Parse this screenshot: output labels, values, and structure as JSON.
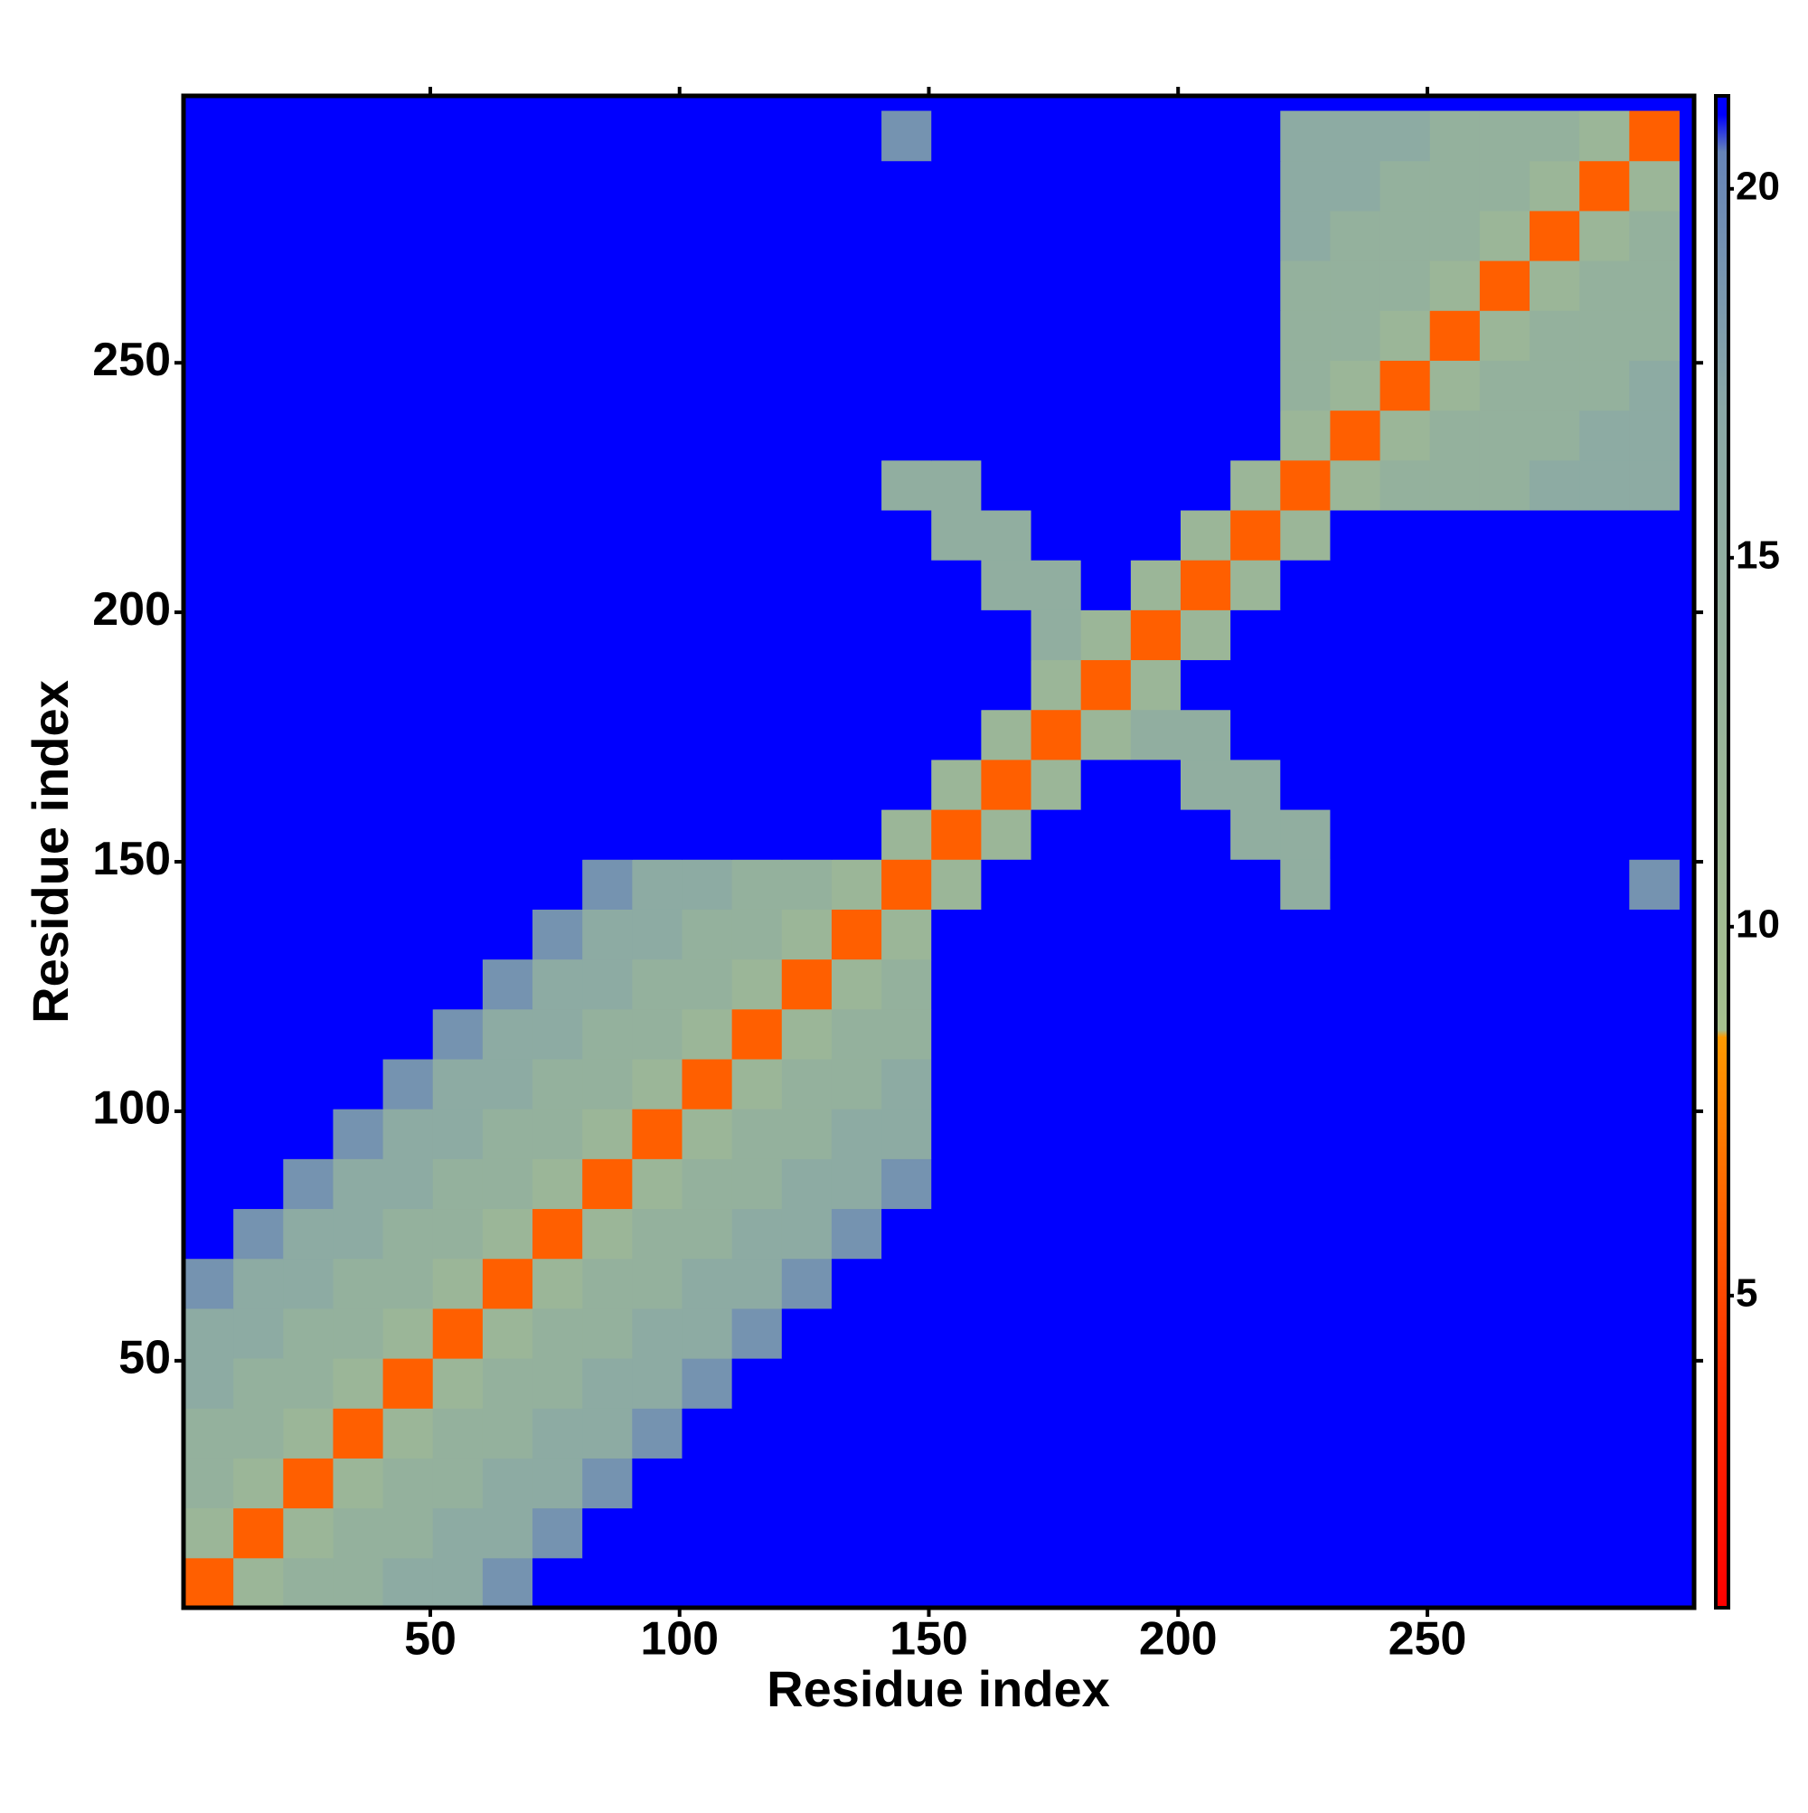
{
  "chart_data": {
    "type": "heatmap",
    "xlabel": "Residue index",
    "ylabel": "Residue index",
    "xlim": [
      0.5,
      303.5
    ],
    "ylim": [
      0.5,
      303.5
    ],
    "xticks": [
      50,
      100,
      150,
      200,
      250
    ],
    "yticks": [
      50,
      100,
      150,
      200,
      250
    ],
    "background_color": "#0000ff",
    "x_bins": [
      0.5,
      10.5,
      20.5,
      30.5,
      40.5,
      50.5,
      60.5,
      70.5,
      80.5,
      90.5,
      100.5,
      110.5,
      120.5,
      130.5,
      140.5,
      150.5,
      160.5,
      170.5,
      180.5,
      190.5,
      200.5,
      210.5,
      220.5,
      230.5,
      240.5,
      250.5,
      260.5,
      270.5,
      280.5,
      290.5,
      300.5
    ],
    "y_bins": [
      0.5,
      10.5,
      20.5,
      30.5,
      40.5,
      50.5,
      60.5,
      70.5,
      80.5,
      90.5,
      100.5,
      110.5,
      120.5,
      130.5,
      140.5,
      150.5,
      160.5,
      170.5,
      180.5,
      190.5,
      200.5,
      210.5,
      220.5,
      230.5,
      240.5,
      250.5,
      260.5,
      270.5,
      280.5,
      290.5,
      300.5
    ],
    "clim": [
      0.77,
      21.26
    ],
    "cticks": [
      5,
      10,
      15,
      20
    ],
    "colorscale": [
      {
        "value": 0.77,
        "color": "#ff0000"
      },
      {
        "value": 4,
        "color": "#ff3000"
      },
      {
        "value": 8.5,
        "color": "#ff9a00"
      },
      {
        "value": 8.6,
        "color": "#a6c08e"
      },
      {
        "value": 17,
        "color": "#8aa8a6"
      },
      {
        "value": 20.5,
        "color": "#6684b8"
      },
      {
        "value": 21,
        "color": "#0000ff"
      },
      {
        "value": 21.26,
        "color": "#0000ff"
      }
    ],
    "z": [
      [
        6,
        12,
        14,
        14,
        16,
        16,
        19,
        21,
        21,
        21,
        21,
        21,
        21,
        21,
        21,
        21,
        21,
        21,
        21,
        21,
        21,
        21,
        21,
        21,
        21,
        21,
        21,
        21,
        21,
        21
      ],
      [
        12,
        6,
        12,
        14,
        14,
        16,
        16,
        19,
        21,
        21,
        21,
        21,
        21,
        21,
        21,
        21,
        21,
        21,
        21,
        21,
        21,
        21,
        21,
        21,
        21,
        21,
        21,
        21,
        21,
        21
      ],
      [
        14,
        12,
        6,
        12,
        14,
        14,
        16,
        16,
        19,
        21,
        21,
        21,
        21,
        21,
        21,
        21,
        21,
        21,
        21,
        21,
        21,
        21,
        21,
        21,
        21,
        21,
        21,
        21,
        21,
        21
      ],
      [
        14,
        14,
        12,
        6,
        12,
        14,
        14,
        16,
        16,
        19,
        21,
        21,
        21,
        21,
        21,
        21,
        21,
        21,
        21,
        21,
        21,
        21,
        21,
        21,
        21,
        21,
        21,
        21,
        21,
        21
      ],
      [
        16,
        14,
        14,
        12,
        6,
        12,
        14,
        14,
        16,
        16,
        19,
        21,
        21,
        21,
        21,
        21,
        21,
        21,
        21,
        21,
        21,
        21,
        21,
        21,
        21,
        21,
        21,
        21,
        21,
        21
      ],
      [
        16,
        16,
        14,
        14,
        12,
        6,
        12,
        14,
        14,
        16,
        16,
        19,
        21,
        21,
        21,
        21,
        21,
        21,
        21,
        21,
        21,
        21,
        21,
        21,
        21,
        21,
        21,
        21,
        21,
        21
      ],
      [
        19,
        16,
        16,
        14,
        14,
        12,
        6,
        12,
        14,
        14,
        16,
        16,
        19,
        21,
        21,
        21,
        21,
        21,
        21,
        21,
        21,
        21,
        21,
        21,
        21,
        21,
        21,
        21,
        21,
        21
      ],
      [
        21,
        19,
        16,
        16,
        14,
        14,
        12,
        6,
        12,
        14,
        14,
        16,
        16,
        19,
        21,
        21,
        21,
        21,
        21,
        21,
        21,
        21,
        21,
        21,
        21,
        21,
        21,
        21,
        21,
        21
      ],
      [
        21,
        21,
        19,
        16,
        16,
        14,
        14,
        12,
        6,
        12,
        14,
        14,
        16,
        16,
        19,
        21,
        21,
        21,
        21,
        21,
        21,
        21,
        21,
        21,
        21,
        21,
        21,
        21,
        21,
        21
      ],
      [
        21,
        21,
        21,
        19,
        16,
        16,
        14,
        14,
        12,
        6,
        12,
        14,
        14,
        16,
        16,
        21,
        21,
        21,
        21,
        21,
        21,
        21,
        21,
        21,
        21,
        21,
        21,
        21,
        21,
        21
      ],
      [
        21,
        21,
        21,
        21,
        19,
        16,
        16,
        14,
        14,
        12,
        6,
        12,
        14,
        14,
        16,
        21,
        21,
        21,
        21,
        21,
        21,
        21,
        21,
        21,
        21,
        21,
        21,
        21,
        21,
        21
      ],
      [
        21,
        21,
        21,
        21,
        21,
        19,
        16,
        16,
        14,
        14,
        12,
        6,
        12,
        14,
        14,
        21,
        21,
        21,
        21,
        21,
        21,
        21,
        21,
        21,
        21,
        21,
        21,
        21,
        21,
        21
      ],
      [
        21,
        21,
        21,
        21,
        21,
        21,
        19,
        16,
        16,
        14,
        14,
        12,
        6,
        12,
        14,
        21,
        21,
        21,
        21,
        21,
        21,
        21,
        21,
        21,
        21,
        21,
        21,
        21,
        21,
        21
      ],
      [
        21,
        21,
        21,
        21,
        21,
        21,
        21,
        19,
        16,
        16,
        14,
        14,
        12,
        6,
        12,
        21,
        21,
        21,
        21,
        21,
        21,
        21,
        21,
        21,
        21,
        21,
        21,
        21,
        21,
        21
      ],
      [
        21,
        21,
        21,
        21,
        21,
        21,
        21,
        21,
        19,
        16,
        16,
        14,
        14,
        12,
        6,
        12,
        21,
        21,
        21,
        21,
        21,
        21,
        15,
        21,
        21,
        21,
        21,
        21,
        21,
        19
      ],
      [
        21,
        21,
        21,
        21,
        21,
        21,
        21,
        21,
        21,
        21,
        21,
        21,
        21,
        21,
        12,
        6,
        12,
        21,
        21,
        21,
        21,
        15,
        15,
        21,
        21,
        21,
        21,
        21,
        21,
        21
      ],
      [
        21,
        21,
        21,
        21,
        21,
        21,
        21,
        21,
        21,
        21,
        21,
        21,
        21,
        21,
        21,
        12,
        6,
        12,
        21,
        21,
        15,
        15,
        21,
        21,
        21,
        21,
        21,
        21,
        21,
        21
      ],
      [
        21,
        21,
        21,
        21,
        21,
        21,
        21,
        21,
        21,
        21,
        21,
        21,
        21,
        21,
        21,
        21,
        12,
        6,
        12,
        15,
        15,
        21,
        21,
        21,
        21,
        21,
        21,
        21,
        21,
        21
      ],
      [
        21,
        21,
        21,
        21,
        21,
        21,
        21,
        21,
        21,
        21,
        21,
        21,
        21,
        21,
        21,
        21,
        21,
        12,
        6,
        12,
        21,
        21,
        21,
        21,
        21,
        21,
        21,
        21,
        21,
        21
      ],
      [
        21,
        21,
        21,
        21,
        21,
        21,
        21,
        21,
        21,
        21,
        21,
        21,
        21,
        21,
        21,
        21,
        21,
        15,
        12,
        6,
        12,
        21,
        21,
        21,
        21,
        21,
        21,
        21,
        21,
        21
      ],
      [
        21,
        21,
        21,
        21,
        21,
        21,
        21,
        21,
        21,
        21,
        21,
        21,
        21,
        21,
        21,
        21,
        15,
        15,
        21,
        12,
        6,
        12,
        21,
        21,
        21,
        21,
        21,
        21,
        21,
        21
      ],
      [
        21,
        21,
        21,
        21,
        21,
        21,
        21,
        21,
        21,
        21,
        21,
        21,
        21,
        21,
        21,
        15,
        15,
        21,
        21,
        21,
        12,
        6,
        12,
        21,
        21,
        21,
        21,
        21,
        21,
        21
      ],
      [
        21,
        21,
        21,
        21,
        21,
        21,
        21,
        21,
        21,
        21,
        21,
        21,
        21,
        21,
        15,
        15,
        21,
        21,
        21,
        21,
        21,
        12,
        6,
        12,
        14,
        14,
        14,
        16,
        16,
        16
      ],
      [
        21,
        21,
        21,
        21,
        21,
        21,
        21,
        21,
        21,
        21,
        21,
        21,
        21,
        21,
        21,
        21,
        21,
        21,
        21,
        21,
        21,
        21,
        12,
        6,
        12,
        14,
        14,
        14,
        16,
        16
      ],
      [
        21,
        21,
        21,
        21,
        21,
        21,
        21,
        21,
        21,
        21,
        21,
        21,
        21,
        21,
        21,
        21,
        21,
        21,
        21,
        21,
        21,
        21,
        14,
        12,
        6,
        12,
        14,
        14,
        14,
        16
      ],
      [
        21,
        21,
        21,
        21,
        21,
        21,
        21,
        21,
        21,
        21,
        21,
        21,
        21,
        21,
        21,
        21,
        21,
        21,
        21,
        21,
        21,
        21,
        14,
        14,
        12,
        6,
        12,
        14,
        14,
        14
      ],
      [
        21,
        21,
        21,
        21,
        21,
        21,
        21,
        21,
        21,
        21,
        21,
        21,
        21,
        21,
        21,
        21,
        21,
        21,
        21,
        21,
        21,
        21,
        14,
        14,
        14,
        12,
        6,
        12,
        14,
        14
      ],
      [
        21,
        21,
        21,
        21,
        21,
        21,
        21,
        21,
        21,
        21,
        21,
        21,
        21,
        21,
        21,
        21,
        21,
        21,
        21,
        21,
        21,
        21,
        16,
        14,
        14,
        14,
        12,
        6,
        12,
        14
      ],
      [
        21,
        21,
        21,
        21,
        21,
        21,
        21,
        21,
        21,
        21,
        21,
        21,
        21,
        21,
        21,
        21,
        21,
        21,
        21,
        21,
        21,
        21,
        16,
        16,
        14,
        14,
        14,
        12,
        6,
        12
      ],
      [
        21,
        21,
        21,
        21,
        21,
        21,
        21,
        21,
        21,
        21,
        21,
        21,
        21,
        21,
        19,
        21,
        21,
        21,
        21,
        21,
        21,
        21,
        16,
        16,
        16,
        14,
        14,
        14,
        12,
        6
      ]
    ]
  }
}
